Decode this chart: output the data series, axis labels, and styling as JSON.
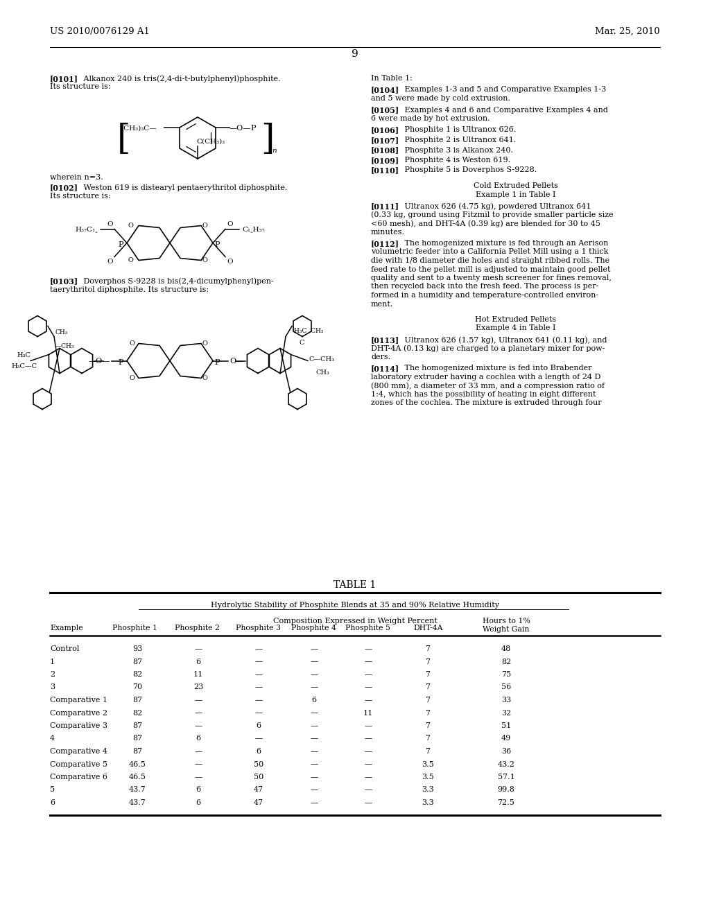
{
  "page_number": "9",
  "patent_number": "US 2010/0076129 A1",
  "patent_date": "Mar. 25, 2010",
  "background_color": "#ffffff",
  "table_title": "TABLE 1",
  "table_subtitle1": "Hydrolytic Stability of Phosphite Blends at 35 and 90% Relative Humidity",
  "table_subtitle2": "Composition Expressed in Weight Percent",
  "table_rows": [
    [
      "Control",
      "93",
      "—",
      "—",
      "—",
      "—",
      "7",
      "48"
    ],
    [
      "1",
      "87",
      "6",
      "—",
      "—",
      "—",
      "7",
      "82"
    ],
    [
      "2",
      "82",
      "11",
      "—",
      "—",
      "—",
      "7",
      "75"
    ],
    [
      "3",
      "70",
      "23",
      "—",
      "—",
      "—",
      "7",
      "56"
    ],
    [
      "Comparative 1",
      "87",
      "—",
      "—",
      "6",
      "—",
      "7",
      "33"
    ],
    [
      "Comparative 2",
      "82",
      "—",
      "—",
      "—",
      "11",
      "7",
      "32"
    ],
    [
      "Comparative 3",
      "87",
      "—",
      "6",
      "—",
      "—",
      "7",
      "51"
    ],
    [
      "4",
      "87",
      "6",
      "—",
      "—",
      "—",
      "7",
      "49"
    ],
    [
      "Comparative 4",
      "87",
      "—",
      "6",
      "—",
      "—",
      "7",
      "36"
    ],
    [
      "Comparative 5",
      "46.5",
      "—",
      "50",
      "—",
      "—",
      "3.5",
      "43.2"
    ],
    [
      "Comparative 6",
      "46.5",
      "—",
      "50",
      "—",
      "—",
      "3.5",
      "57.1"
    ],
    [
      "5",
      "43.7",
      "6",
      "47",
      "—",
      "—",
      "3.3",
      "99.8"
    ],
    [
      "6",
      "43.7",
      "6",
      "47",
      "—",
      "—",
      "3.3",
      "72.5"
    ]
  ]
}
